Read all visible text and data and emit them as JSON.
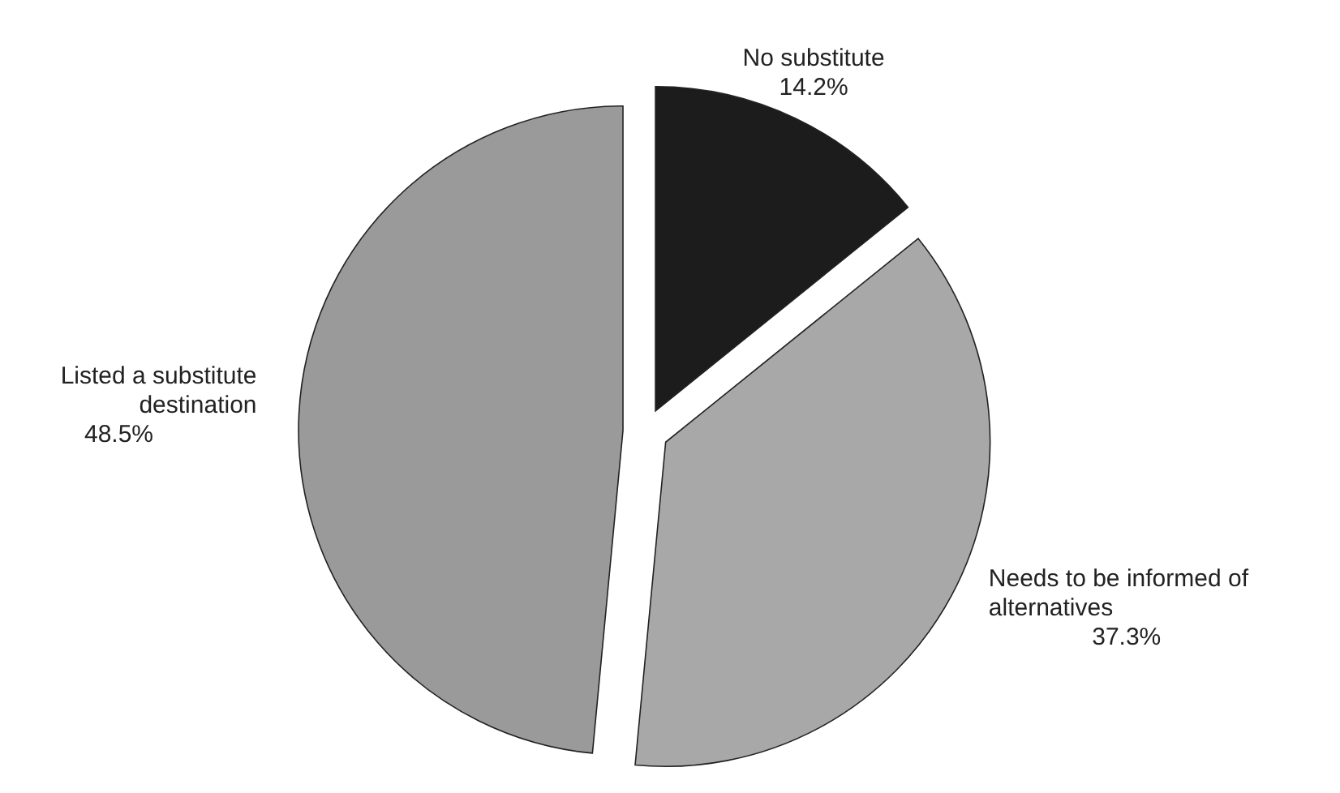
{
  "chart_data": {
    "type": "pie",
    "categories": [
      "No substitute",
      "Needs to be informed of alternatives",
      "Listed a substitute destination"
    ],
    "values": [
      14.2,
      37.3,
      48.5
    ],
    "colors": [
      "#1c1c1c",
      "#a8a8a8",
      "#9a9a9a"
    ],
    "value_labels": [
      "14.2%",
      "37.3%",
      "48.5%"
    ]
  }
}
